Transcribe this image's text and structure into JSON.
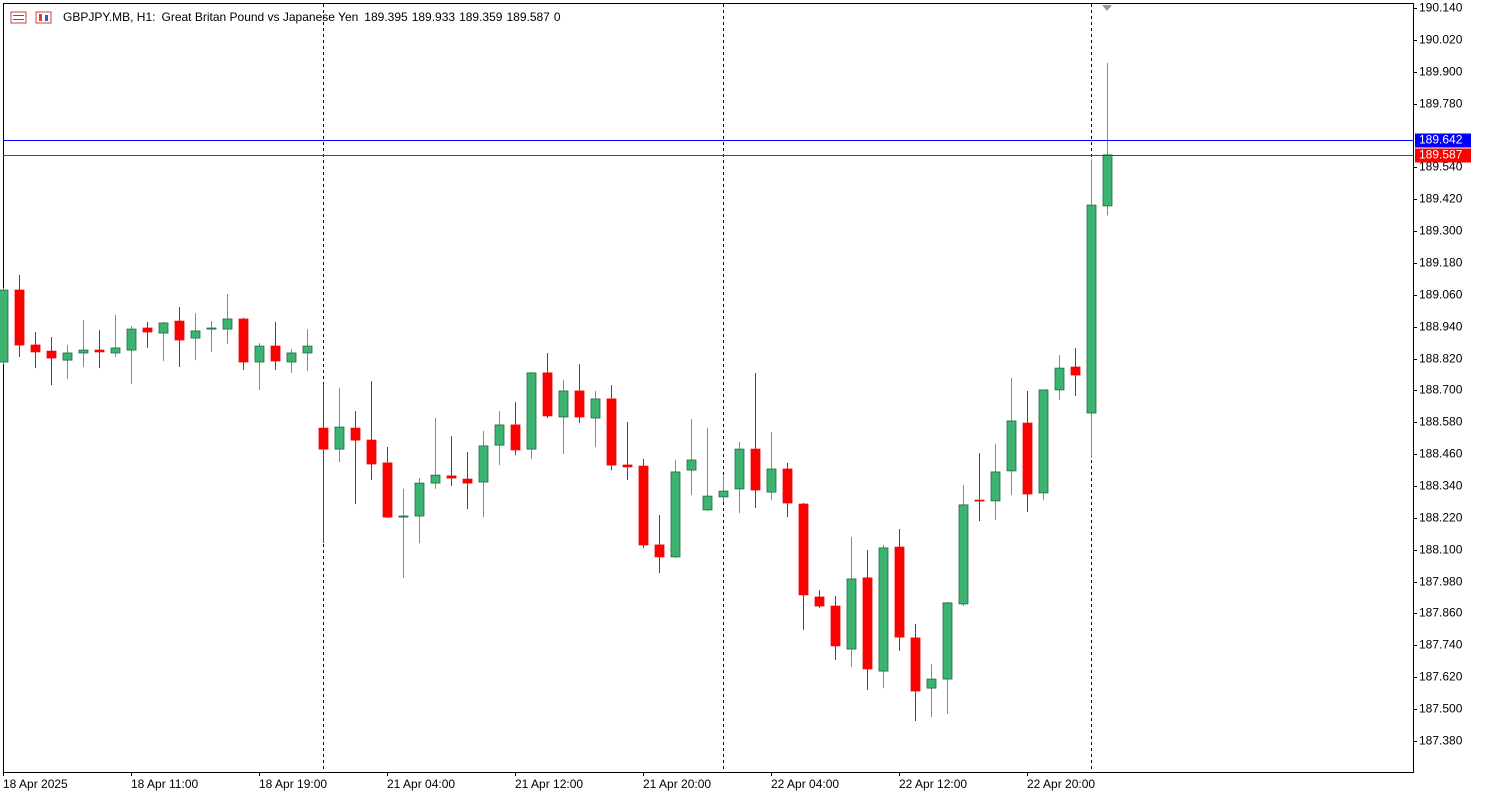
{
  "chart_data": {
    "type": "candlestick",
    "symbol": "GBPJPY.MB, H1:",
    "description": "Great Britan Pound vs Japanese Yen",
    "volume": 0,
    "categories": [
      "18 Apr 2025",
      null,
      null,
      null,
      null,
      null,
      null,
      null,
      "18 Apr 11:00",
      null,
      null,
      null,
      null,
      null,
      null,
      null,
      "18 Apr 19:00",
      null,
      null,
      null,
      null,
      null,
      null,
      null,
      "21 Apr 04:00",
      null,
      null,
      null,
      null,
      null,
      null,
      null,
      "21 Apr 12:00",
      null,
      null,
      null,
      null,
      null,
      null,
      null,
      "21 Apr 20:00",
      null,
      null,
      null,
      null,
      null,
      null,
      null,
      "22 Apr 04:00",
      null,
      null,
      null,
      null,
      null,
      null,
      null,
      "22 Apr 12:00",
      null,
      null,
      null,
      null,
      null,
      null,
      null,
      "22 Apr 20:00",
      null,
      null,
      null,
      null,
      null
    ],
    "open": [
      188.807,
      189.078,
      188.871,
      188.848,
      188.814,
      188.841,
      188.852,
      188.841,
      188.852,
      188.935,
      188.916,
      188.961,
      188.897,
      188.931,
      188.931,
      188.969,
      188.807,
      188.867,
      188.807,
      188.841,
      188.558,
      188.479,
      188.558,
      188.513,
      188.427,
      188.223,
      188.227,
      188.351,
      188.378,
      188.366,
      188.355,
      188.494,
      188.57,
      188.479,
      188.766,
      188.6,
      188.698,
      188.596,
      188.668,
      188.419,
      188.415,
      188.118,
      188.073,
      188.4,
      188.25,
      188.299,
      188.329,
      188.479,
      188.317,
      188.404,
      188.272,
      187.922,
      187.888,
      187.726,
      187.994,
      187.643,
      188.11,
      187.768,
      187.579,
      187.613,
      187.896,
      188.287,
      188.284,
      188.397,
      188.577,
      188.314,
      188.702,
      188.788,
      188.615,
      189.395
    ],
    "high": [
      189.086,
      189.135,
      188.92,
      188.901,
      188.871,
      188.965,
      188.927,
      188.984,
      188.942,
      188.958,
      188.958,
      189.014,
      188.991,
      188.961,
      189.063,
      188.973,
      188.878,
      188.958,
      188.856,
      188.931,
      188.724,
      188.709,
      188.622,
      188.735,
      188.487,
      188.329,
      188.37,
      188.596,
      188.528,
      188.468,
      188.547,
      188.622,
      188.656,
      188.769,
      188.841,
      188.739,
      188.799,
      188.698,
      188.72,
      188.581,
      188.442,
      188.231,
      188.438,
      188.592,
      188.558,
      188.378,
      188.506,
      188.766,
      188.543,
      188.427,
      188.276,
      187.948,
      187.926,
      188.148,
      188.099,
      188.118,
      188.178,
      187.82,
      187.67,
      187.903,
      188.344,
      188.464,
      188.498,
      188.747,
      188.698,
      188.702,
      188.833,
      188.86,
      189.57,
      189.933
    ],
    "low": [
      188.799,
      188.826,
      188.784,
      188.72,
      188.743,
      188.788,
      188.784,
      188.826,
      188.724,
      188.86,
      188.811,
      188.788,
      188.814,
      188.845,
      188.875,
      188.777,
      188.702,
      188.777,
      188.766,
      188.773,
      188.125,
      188.43,
      188.272,
      188.363,
      188.22,
      187.994,
      188.125,
      188.329,
      188.34,
      188.253,
      188.223,
      188.419,
      188.457,
      188.442,
      188.596,
      188.461,
      188.577,
      188.487,
      188.4,
      188.363,
      188.107,
      188.012,
      188.069,
      188.306,
      188.246,
      188.28,
      188.238,
      188.257,
      188.287,
      188.223,
      187.798,
      187.881,
      187.685,
      187.659,
      187.572,
      187.579,
      187.719,
      187.455,
      187.47,
      187.482,
      187.888,
      188.208,
      188.212,
      188.306,
      188.242,
      188.287,
      188.664,
      188.679,
      188.445,
      189.359
    ],
    "close": [
      189.078,
      188.871,
      188.845,
      188.822,
      188.841,
      188.852,
      188.845,
      188.86,
      188.931,
      188.92,
      188.954,
      188.89,
      188.924,
      188.935,
      188.969,
      188.807,
      188.867,
      188.811,
      188.841,
      188.867,
      188.479,
      188.562,
      188.513,
      188.423,
      188.223,
      188.227,
      188.351,
      188.381,
      188.37,
      188.351,
      188.491,
      188.57,
      188.476,
      188.766,
      188.604,
      188.698,
      188.6,
      188.668,
      188.419,
      188.412,
      188.118,
      188.073,
      188.393,
      188.438,
      188.302,
      188.321,
      188.479,
      188.325,
      188.404,
      188.276,
      187.93,
      187.888,
      187.738,
      187.99,
      187.651,
      188.107,
      187.771,
      187.568,
      187.613,
      187.9,
      188.269,
      188.284,
      188.393,
      188.585,
      188.31,
      188.702,
      188.784,
      188.758,
      189.398,
      189.587
    ],
    "up_color": "#3cb371",
    "down_color": "#ff0000",
    "ask_line": {
      "value": 189.642,
      "color": "#0000ff"
    },
    "bid_color": "#ff0000",
    "period_separators": [
      20,
      45,
      68
    ],
    "ylim": [
      187.263,
      190.159
    ],
    "yticks": [
      {
        "value": 190.14,
        "label": "190.140"
      },
      {
        "value": 190.02,
        "label": "190.020"
      },
      {
        "value": 189.9,
        "label": "189.900"
      },
      {
        "value": 189.78,
        "label": "189.780"
      },
      {
        "value": 189.54,
        "label": "189.540"
      },
      {
        "value": 189.42,
        "label": "189.420"
      },
      {
        "value": 189.3,
        "label": "189.300"
      },
      {
        "value": 189.18,
        "label": "189.180"
      },
      {
        "value": 189.06,
        "label": "189.060"
      },
      {
        "value": 188.94,
        "label": "188.940"
      },
      {
        "value": 188.82,
        "label": "188.820"
      },
      {
        "value": 188.7,
        "label": "188.700"
      },
      {
        "value": 188.58,
        "label": "188.580"
      },
      {
        "value": 188.46,
        "label": "188.460"
      },
      {
        "value": 188.34,
        "label": "188.340"
      },
      {
        "value": 188.22,
        "label": "188.220"
      },
      {
        "value": 188.1,
        "label": "188.100"
      },
      {
        "value": 187.98,
        "label": "187.980"
      },
      {
        "value": 187.86,
        "label": "187.860"
      },
      {
        "value": 187.74,
        "label": "187.740"
      },
      {
        "value": 187.62,
        "label": "187.620"
      },
      {
        "value": 187.5,
        "label": "187.500"
      },
      {
        "value": 187.38,
        "label": "187.380"
      }
    ]
  }
}
